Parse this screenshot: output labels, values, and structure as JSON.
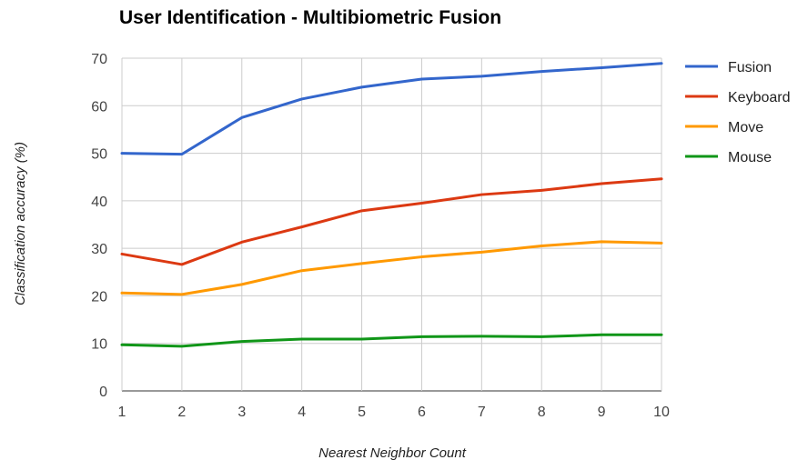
{
  "chart_data": {
    "type": "line",
    "title": "User Identification - Multibiometric Fusion",
    "xlabel": "Nearest Neighbor Count",
    "ylabel": "Classification accuracy (%)",
    "x": [
      1,
      2,
      3,
      4,
      5,
      6,
      7,
      8,
      9,
      10
    ],
    "xlim": [
      1,
      10
    ],
    "ylim": [
      0,
      70
    ],
    "yticks": [
      0,
      10,
      20,
      30,
      40,
      50,
      60,
      70
    ],
    "grid": true,
    "legend_position": "right",
    "series": [
      {
        "name": "Fusion",
        "color": "#3366cc",
        "values": [
          50.0,
          49.8,
          57.5,
          61.4,
          63.9,
          65.6,
          66.2,
          67.2,
          68.0,
          68.9
        ]
      },
      {
        "name": "Keyboard",
        "color": "#dc3912",
        "values": [
          28.8,
          26.6,
          31.3,
          34.5,
          37.9,
          39.5,
          41.3,
          42.2,
          43.6,
          44.6
        ]
      },
      {
        "name": "Move",
        "color": "#ff9900",
        "values": [
          20.6,
          20.3,
          22.4,
          25.3,
          26.8,
          28.2,
          29.2,
          30.5,
          31.4,
          31.1
        ]
      },
      {
        "name": "Mouse",
        "color": "#109618",
        "values": [
          9.7,
          9.4,
          10.4,
          10.9,
          10.9,
          11.4,
          11.5,
          11.4,
          11.8,
          11.8
        ]
      }
    ]
  }
}
